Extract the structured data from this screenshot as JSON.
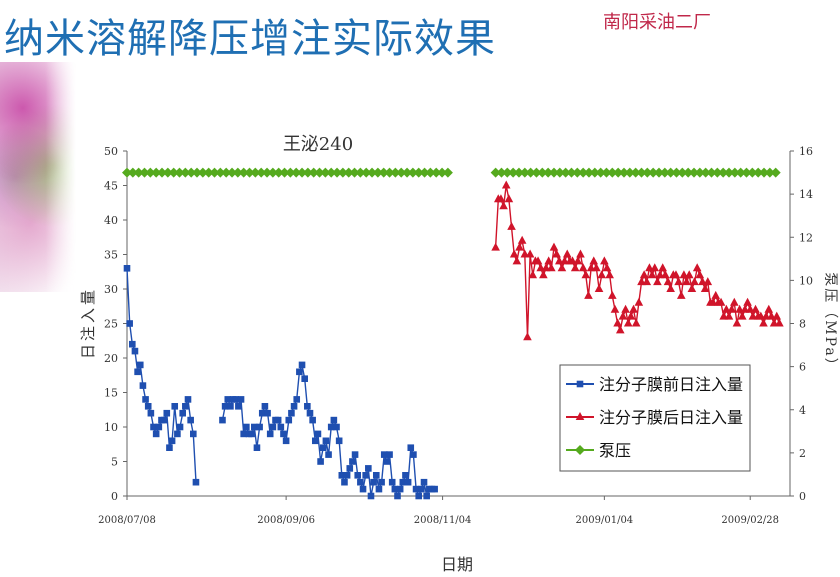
{
  "slide": {
    "title": "纳米溶解降压增注实际效果",
    "organization": "南阳采油二厂"
  },
  "chart_data": {
    "type": "line",
    "title": "王泌240",
    "xlabel": "日期",
    "ylabel": "日注入量",
    "y2label": "泵压（MPa）",
    "x_tick_labels": [
      "2008/07/08",
      "2008/09/06",
      "2008/11/04",
      "2009/01/04",
      "2009/02/28"
    ],
    "x_ticks": [
      "2008-07-08",
      "2008-09-06",
      "2008-11-04",
      "2009-01-04",
      "2009-02-28"
    ],
    "xlim": [
      "2008-07-08",
      "2009-03-15"
    ],
    "ylim": [
      0,
      50
    ],
    "y_ticks": [
      0,
      5,
      10,
      15,
      20,
      25,
      30,
      35,
      40,
      45,
      50
    ],
    "y2lim": [
      0,
      16
    ],
    "y2_ticks": [
      0,
      2,
      4,
      6,
      8,
      10,
      12,
      14,
      16
    ],
    "grid": false,
    "legend_position": "bottom-right",
    "series": [
      {
        "name": "注分子膜前日注入量",
        "axis": "left",
        "color": "#1f4fb0",
        "marker": "square",
        "x": [
          "2008-07-08",
          "2008-07-09",
          "2008-07-10",
          "2008-07-11",
          "2008-07-12",
          "2008-07-13",
          "2008-07-14",
          "2008-07-15",
          "2008-07-16",
          "2008-07-17",
          "2008-07-18",
          "2008-07-19",
          "2008-07-20",
          "2008-07-21",
          "2008-07-22",
          "2008-07-23",
          "2008-07-24",
          "2008-07-25",
          "2008-07-26",
          "2008-07-27",
          "2008-07-28",
          "2008-07-29",
          "2008-07-30",
          "2008-07-31",
          "2008-08-01",
          "2008-08-02",
          "2008-08-03",
          "2008-08-04",
          "2008-08-05",
          "2008-08-06",
          "2008-08-13",
          "2008-08-14",
          "2008-08-15",
          "2008-08-16",
          "2008-08-17",
          "2008-08-18",
          "2008-08-19",
          "2008-08-20",
          "2008-08-21",
          "2008-08-22",
          "2008-08-23",
          "2008-08-24",
          "2008-08-25",
          "2008-08-26",
          "2008-08-27",
          "2008-08-28",
          "2008-08-29",
          "2008-08-30",
          "2008-08-31",
          "2008-09-01",
          "2008-09-02",
          "2008-09-03",
          "2008-09-04",
          "2008-09-05",
          "2008-09-06",
          "2008-09-07",
          "2008-09-08",
          "2008-09-09",
          "2008-09-10",
          "2008-09-11",
          "2008-09-12",
          "2008-09-13",
          "2008-09-14",
          "2008-09-15",
          "2008-09-16",
          "2008-09-17",
          "2008-09-18",
          "2008-09-19",
          "2008-09-20",
          "2008-09-21",
          "2008-09-22",
          "2008-09-23",
          "2008-09-24",
          "2008-09-25",
          "2008-09-26",
          "2008-09-27",
          "2008-09-28",
          "2008-09-29",
          "2008-09-30",
          "2008-10-01",
          "2008-10-02",
          "2008-10-03",
          "2008-10-04",
          "2008-10-05",
          "2008-10-06",
          "2008-10-07",
          "2008-10-08",
          "2008-10-09",
          "2008-10-10",
          "2008-10-11",
          "2008-10-12",
          "2008-10-13",
          "2008-10-14",
          "2008-10-15",
          "2008-10-16",
          "2008-10-17",
          "2008-10-18",
          "2008-10-19",
          "2008-10-20",
          "2008-10-21",
          "2008-10-22",
          "2008-10-23",
          "2008-10-24",
          "2008-10-25",
          "2008-10-26",
          "2008-10-27",
          "2008-10-28",
          "2008-10-29",
          "2008-10-30",
          "2008-10-31",
          "2008-11-01"
        ],
        "values": [
          33,
          25,
          22,
          21,
          18,
          19,
          16,
          14,
          13,
          12,
          10,
          9,
          10,
          11,
          11,
          12,
          7,
          8,
          13,
          9,
          10,
          12,
          13,
          14,
          11,
          9,
          2,
          null,
          null,
          null,
          11,
          13,
          14,
          13,
          14,
          14,
          13,
          14,
          9,
          10,
          9,
          9,
          10,
          7,
          10,
          12,
          13,
          12,
          9,
          10,
          11,
          11,
          10,
          9,
          8,
          11,
          12,
          13,
          14,
          18,
          19,
          17,
          13,
          12,
          11,
          8,
          9,
          5,
          7,
          8,
          6,
          10,
          11,
          10,
          8,
          3,
          2,
          3,
          4,
          5,
          6,
          3,
          2,
          1,
          3,
          4,
          0,
          2,
          3,
          1,
          2,
          6,
          5,
          6,
          2,
          1,
          0,
          1,
          2,
          3,
          2,
          7,
          6,
          1,
          0,
          1,
          2,
          0,
          1,
          1,
          1
        ],
        "note": "gap between 2008-08-06 and 2008-08-13"
      },
      {
        "name": "注分子膜后日注入量",
        "axis": "left",
        "color": "#d0142a",
        "marker": "triangle",
        "x": [
          "2008-11-24",
          "2008-11-25",
          "2008-11-26",
          "2008-11-27",
          "2008-11-28",
          "2008-11-29",
          "2008-11-30",
          "2008-12-01",
          "2008-12-02",
          "2008-12-03",
          "2008-12-04",
          "2008-12-05",
          "2008-12-06",
          "2008-12-07",
          "2008-12-08",
          "2008-12-09",
          "2008-12-10",
          "2008-12-11",
          "2008-12-12",
          "2008-12-13",
          "2008-12-14",
          "2008-12-15",
          "2008-12-16",
          "2008-12-17",
          "2008-12-18",
          "2008-12-19",
          "2008-12-20",
          "2008-12-21",
          "2008-12-22",
          "2008-12-23",
          "2008-12-24",
          "2008-12-25",
          "2008-12-26",
          "2008-12-27",
          "2008-12-28",
          "2008-12-29",
          "2008-12-30",
          "2008-12-31",
          "2009-01-01",
          "2009-01-02",
          "2009-01-03",
          "2009-01-04",
          "2009-01-05",
          "2009-01-06",
          "2009-01-07",
          "2009-01-08",
          "2009-01-09",
          "2009-01-10",
          "2009-01-11",
          "2009-01-12",
          "2009-01-13",
          "2009-01-14",
          "2009-01-15",
          "2009-01-16",
          "2009-01-17",
          "2009-01-18",
          "2009-01-19",
          "2009-01-20",
          "2009-01-21",
          "2009-01-22",
          "2009-01-23",
          "2009-01-24",
          "2009-01-25",
          "2009-01-26",
          "2009-01-27",
          "2009-01-28",
          "2009-01-29",
          "2009-01-30",
          "2009-01-31",
          "2009-02-01",
          "2009-02-02",
          "2009-02-03",
          "2009-02-04",
          "2009-02-05",
          "2009-02-06",
          "2009-02-07",
          "2009-02-08",
          "2009-02-09",
          "2009-02-10",
          "2009-02-11",
          "2009-02-12",
          "2009-02-13",
          "2009-02-14",
          "2009-02-15",
          "2009-02-16",
          "2009-02-17",
          "2009-02-18",
          "2009-02-19",
          "2009-02-20",
          "2009-02-21",
          "2009-02-22",
          "2009-02-23",
          "2009-02-24",
          "2009-02-25",
          "2009-02-26",
          "2009-02-27",
          "2009-02-28",
          "2009-03-01",
          "2009-03-02",
          "2009-03-03",
          "2009-03-04",
          "2009-03-05",
          "2009-03-06",
          "2009-03-07",
          "2009-03-08",
          "2009-03-09",
          "2009-03-10",
          "2009-03-11"
        ],
        "values": [
          36,
          43,
          43,
          42,
          45,
          43,
          39,
          35,
          34,
          36,
          37,
          35,
          23,
          35,
          32,
          34,
          34,
          33,
          32,
          33,
          34,
          33,
          36,
          35,
          34,
          33,
          34,
          35,
          34,
          34,
          33,
          34,
          35,
          33,
          32,
          29,
          33,
          34,
          33,
          30,
          32,
          34,
          33,
          32,
          29,
          27,
          25,
          24,
          26,
          27,
          25,
          26,
          27,
          25,
          28,
          31,
          32,
          31,
          33,
          32,
          33,
          31,
          32,
          33,
          32,
          31,
          30,
          32,
          32,
          31,
          29,
          32,
          31,
          32,
          30,
          31,
          33,
          32,
          31,
          30,
          31,
          28,
          28,
          29,
          28,
          28,
          26,
          27,
          26,
          27,
          28,
          25,
          27,
          26,
          27,
          28,
          27,
          26,
          27,
          26,
          26,
          25,
          26,
          27,
          26,
          25,
          26,
          25
        ],
        "note": "values in 日注入量 units on left axis"
      },
      {
        "name": "泵压",
        "axis": "right",
        "color": "#55aa1e",
        "marker": "diamond",
        "segments": [
          {
            "x_start": "2008-07-08",
            "x_end": "2008-08-08",
            "value": 15
          },
          {
            "x_start": "2008-08-10",
            "x_end": "2008-11-06",
            "value": 15
          },
          {
            "x_start": "2008-11-24",
            "x_end": "2009-03-11",
            "value": 15
          }
        ],
        "marker_interval_days": 2.2
      }
    ]
  }
}
